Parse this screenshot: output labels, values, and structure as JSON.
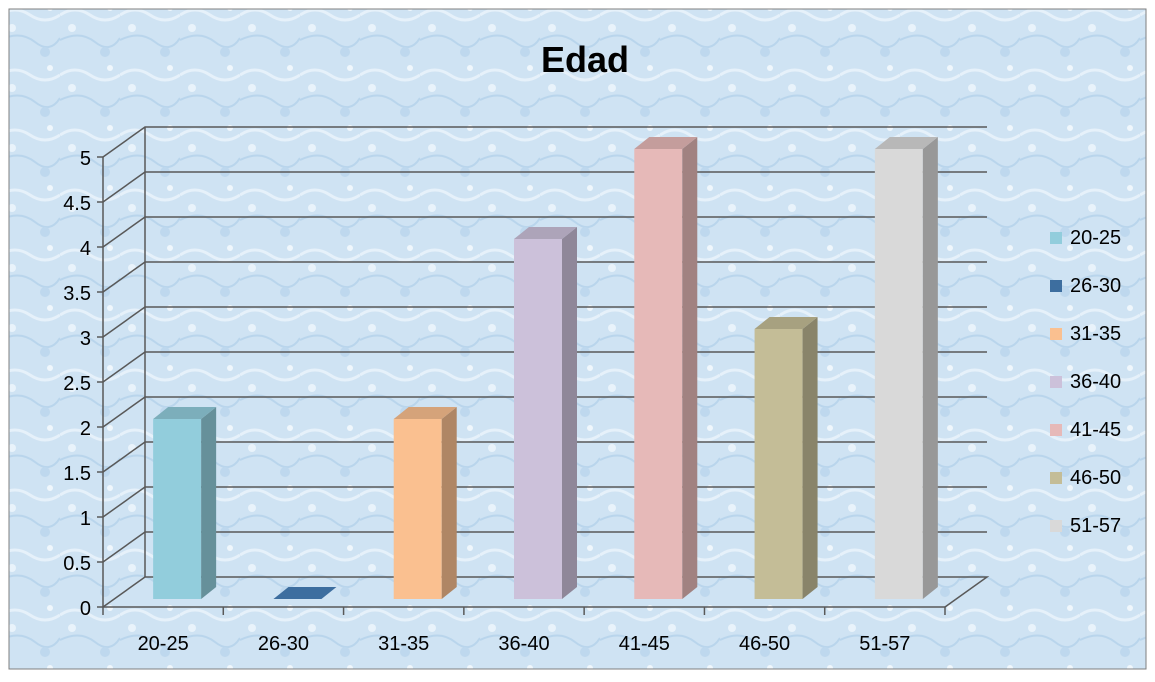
{
  "chart_data": {
    "type": "bar",
    "title": "Edad",
    "categories": [
      "20-25",
      "26-30",
      "31-35",
      "36-40",
      "41-45",
      "46-50",
      "51-57"
    ],
    "values": [
      2,
      0,
      2,
      4,
      5,
      3,
      5
    ],
    "ylim": [
      0,
      5
    ],
    "yticks": [
      "0",
      "0.5",
      "1",
      "1.5",
      "2",
      "2.5",
      "3",
      "3.5",
      "4",
      "4.5",
      "5"
    ],
    "grid": true,
    "legend_position": "right",
    "legend": [
      "20-25",
      "26-30",
      "31-35",
      "36-40",
      "41-45",
      "46-50",
      "51-57"
    ],
    "colors": [
      "#92cddc",
      "#3d6e9f",
      "#fac090",
      "#ccc1da",
      "#e6b9b8",
      "#c4bd97",
      "#d9d9d9"
    ]
  }
}
